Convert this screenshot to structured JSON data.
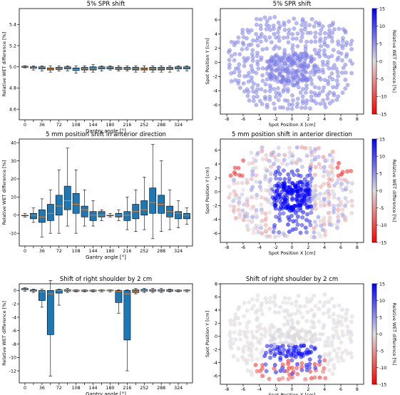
{
  "colors": {
    "box_fill": "#1f77b4",
    "median": "#ff7f0e",
    "cbar_high": "#0000ff",
    "cbar_mid": "#dddddd",
    "cbar_low": "#ff0000"
  },
  "chart_data": [
    {
      "type": "box",
      "title": "5% SPR shift",
      "xlabel": "Gantry angle [°]",
      "ylabel": "Relative WET difference [%]",
      "ylim": [
        4.5,
        5.55
      ],
      "yticks": [
        "4.6",
        "4.8",
        "5.0",
        "5.2",
        "5.4"
      ],
      "xticks": [
        "0",
        "36",
        "72",
        "108",
        "144",
        "180",
        "216",
        "252",
        "288",
        "324"
      ],
      "angles": [
        0,
        18,
        36,
        54,
        72,
        90,
        108,
        126,
        144,
        162,
        180,
        198,
        216,
        234,
        252,
        270,
        288,
        306,
        324,
        342
      ],
      "boxes": [
        [
          4.99,
          4.995,
          5.0,
          5.005,
          5.01
        ],
        [
          4.97,
          4.985,
          4.99,
          5.0,
          5.01
        ],
        [
          4.96,
          4.98,
          4.99,
          5.0,
          5.01
        ],
        [
          4.95,
          4.97,
          4.98,
          4.99,
          5.01
        ],
        [
          4.96,
          4.975,
          4.985,
          4.995,
          5.01
        ],
        [
          4.96,
          4.98,
          4.99,
          5.0,
          5.01
        ],
        [
          4.94,
          4.965,
          4.975,
          4.99,
          5.01
        ],
        [
          4.95,
          4.97,
          4.985,
          4.995,
          5.01
        ],
        [
          4.95,
          4.97,
          4.985,
          5.0,
          5.02
        ],
        [
          4.96,
          4.98,
          4.99,
          5.0,
          5.01
        ],
        [
          4.97,
          4.98,
          4.99,
          5.0,
          5.01
        ],
        [
          4.96,
          4.975,
          4.985,
          4.995,
          5.01
        ],
        [
          4.96,
          4.975,
          4.985,
          4.995,
          5.01
        ],
        [
          4.95,
          4.97,
          4.985,
          4.995,
          5.01
        ],
        [
          4.95,
          4.97,
          4.98,
          4.99,
          5.01
        ],
        [
          4.95,
          4.97,
          4.985,
          4.995,
          5.01
        ],
        [
          4.95,
          4.97,
          4.985,
          4.995,
          5.01
        ],
        [
          4.95,
          4.975,
          4.985,
          4.995,
          5.01
        ],
        [
          4.96,
          4.98,
          4.99,
          5.0,
          5.01
        ],
        [
          4.96,
          4.98,
          4.99,
          5.0,
          5.01
        ]
      ]
    },
    {
      "type": "scatter",
      "title": "5% SPR shift",
      "xlabel": "Spot Position X [cm]",
      "ylabel": "Spot Position Y [cm]",
      "xlim": [
        -8.8,
        8.8
      ],
      "ylim": [
        -7.3,
        7.6
      ],
      "xticks": [
        "-8",
        "-6",
        "-4",
        "-2",
        "0",
        "2",
        "4",
        "6",
        "8"
      ],
      "yticks": [
        "-6",
        "-4",
        "-2",
        "0",
        "2",
        "4",
        "6"
      ],
      "colorbar": {
        "label": "Relative WET difference [%]",
        "range": [
          -15,
          15
        ],
        "ticks": [
          "15",
          "10",
          "5",
          "0",
          "-5",
          "-10",
          "-15"
        ]
      },
      "pattern": "uniform_spr"
    },
    {
      "type": "box",
      "title": "5 mm position shift in anterior direction",
      "xlabel": "Gantry angle [°]",
      "ylabel": "Relative WET difference [%]",
      "ylim": [
        -17,
        42
      ],
      "yticks": [
        "-10",
        "0",
        "10",
        "20",
        "30",
        "40"
      ],
      "xticks": [
        "0",
        "36",
        "72",
        "108",
        "144",
        "180",
        "216",
        "252",
        "288",
        "324"
      ],
      "angles": [
        0,
        18,
        36,
        54,
        72,
        90,
        108,
        126,
        144,
        162,
        180,
        198,
        216,
        234,
        252,
        270,
        288,
        306,
        324,
        342
      ],
      "boxes": [
        [
          -1,
          0,
          0,
          0,
          1
        ],
        [
          -4,
          -2,
          0,
          1,
          4
        ],
        [
          -12,
          -4,
          -1,
          3,
          9
        ],
        [
          -10,
          -3,
          1,
          6,
          14
        ],
        [
          -10,
          0,
          5,
          11,
          25
        ],
        [
          -6,
          3,
          8,
          16,
          37
        ],
        [
          -10,
          1,
          6,
          12,
          25
        ],
        [
          -6,
          -1,
          3,
          5,
          14
        ],
        [
          -6,
          -3,
          0,
          2,
          8
        ],
        [
          -3,
          -1,
          0,
          2,
          3
        ],
        [
          -1,
          0,
          0,
          0,
          1
        ],
        [
          -3,
          -1,
          0,
          1,
          3
        ],
        [
          -8,
          -3,
          0,
          2,
          10
        ],
        [
          -9,
          -2,
          2,
          6,
          14
        ],
        [
          -8,
          0,
          3,
          8,
          21
        ],
        [
          -13,
          1,
          7,
          15,
          39
        ],
        [
          -9,
          1,
          6,
          11,
          30
        ],
        [
          -8,
          -1,
          2,
          5,
          14
        ],
        [
          -7,
          -2,
          1,
          2,
          8
        ],
        [
          -5,
          -2,
          0,
          1,
          4
        ]
      ]
    },
    {
      "type": "scatter",
      "title": "5 mm position shift in anterior direction",
      "xlabel": "Spot Position X [cm]",
      "ylabel": "Spot Position Y [cm]",
      "xlim": [
        -8.8,
        8.8
      ],
      "ylim": [
        -7.3,
        7.6
      ],
      "xticks": [
        "-8",
        "-6",
        "-4",
        "-2",
        "0",
        "2",
        "4",
        "6",
        "8"
      ],
      "yticks": [
        "-6",
        "-4",
        "-2",
        "0",
        "2",
        "4",
        "6"
      ],
      "colorbar": {
        "label": "Relative WET difference [%]",
        "range": [
          -15,
          15
        ],
        "ticks": [
          "15",
          "10",
          "5",
          "0",
          "-5",
          "-10",
          "-15"
        ]
      },
      "pattern": "anterior_shift"
    },
    {
      "type": "box",
      "title": "Shift of right shoulder by 2 cm",
      "xlabel": "Gantry angle [°]",
      "ylabel": "Relative WET difference [%]",
      "ylim": [
        -13.8,
        1.0
      ],
      "yticks": [
        "-12",
        "-10",
        "-8",
        "-6",
        "-4",
        "-2",
        "0"
      ],
      "xticks": [
        "0",
        "36",
        "72",
        "108",
        "144",
        "180",
        "216",
        "252",
        "288",
        "324"
      ],
      "angles": [
        0,
        18,
        36,
        54,
        72,
        90,
        108,
        126,
        144,
        162,
        180,
        198,
        216,
        234,
        252,
        270,
        288,
        306,
        324,
        342
      ],
      "boxes": [
        [
          -0.1,
          0.1,
          0.2,
          0.3,
          0.4
        ],
        [
          -0.3,
          -0.1,
          0,
          0.1,
          0.2
        ],
        [
          -2.5,
          -1.5,
          -0.2,
          0,
          0.2
        ],
        [
          -12.8,
          -6.6,
          -0.5,
          0,
          1.5
        ],
        [
          -2.2,
          -0.4,
          0,
          0.1,
          0.2
        ],
        [
          -0.3,
          -0.1,
          0,
          0.1,
          0.3
        ],
        [
          -0.2,
          -0.1,
          0,
          0.05,
          0.1
        ],
        [
          -0.2,
          -0.1,
          0,
          0.05,
          0.1
        ],
        [
          -0.2,
          -0.1,
          0,
          0.05,
          0.1
        ],
        [
          -0.2,
          -0.05,
          0,
          0.05,
          0.1
        ],
        [
          -0.2,
          -0.05,
          0,
          0.05,
          0.1
        ],
        [
          -3.4,
          -1.8,
          -0.1,
          0,
          0.1
        ],
        [
          -12,
          -7.4,
          -0.5,
          0,
          0.1
        ],
        [
          -0.5,
          -0.3,
          -0.1,
          0.1,
          0.3
        ],
        [
          -0.3,
          -0.1,
          0,
          0.15,
          0.3
        ],
        [
          -0.3,
          -0.1,
          0,
          0.1,
          0.3
        ],
        [
          -0.3,
          -0.1,
          0,
          0.1,
          0.3
        ],
        [
          -0.2,
          -0.1,
          0,
          0.1,
          0.2
        ],
        [
          -0.2,
          -0.1,
          0,
          0.05,
          0.1
        ],
        [
          -0.2,
          -0.05,
          0,
          0.05,
          0.1
        ]
      ]
    },
    {
      "type": "scatter",
      "title": "Shift of right shoulder by 2 cm",
      "xlabel": "Spot Position X [cm]",
      "ylabel": "Spot Position Y [cm]",
      "xlim": [
        -8.8,
        8.8
      ],
      "ylim": [
        -7.3,
        8.0
      ],
      "xticks": [
        "-8",
        "-6",
        "-4",
        "-2",
        "0",
        "2",
        "4",
        "6",
        "8"
      ],
      "yticks": [
        "-6",
        "-4",
        "-2",
        "0",
        "2",
        "4",
        "6",
        "8"
      ],
      "colorbar": {
        "label": "Relative WET difference [%]",
        "range": [
          -15,
          15
        ],
        "ticks": [
          "15",
          "10",
          "5",
          "0",
          "-5",
          "-10",
          "-15"
        ]
      },
      "pattern": "shoulder_shift"
    }
  ]
}
